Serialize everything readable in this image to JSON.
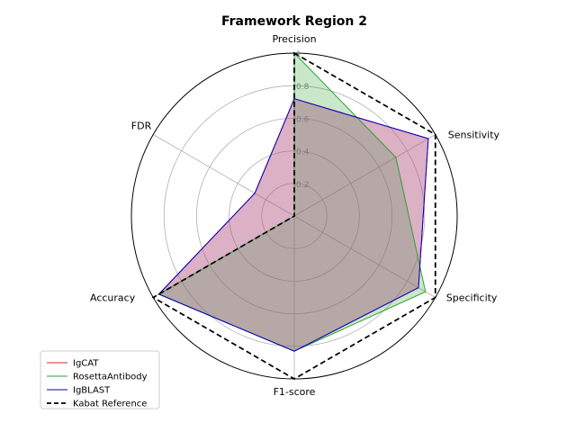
{
  "chart_data": {
    "type": "radar",
    "title": "Framework Region 2",
    "axes": [
      "Precision",
      "Sensitivity",
      "Specificity",
      "F1-score",
      "Accuracy",
      "FDR"
    ],
    "rlim": [
      0,
      1
    ],
    "rticks": [
      "0.2",
      "0.4",
      "0.6",
      "0.8",
      "1"
    ],
    "rtick_values": [
      0.2,
      0.4,
      0.6,
      0.8,
      1.0
    ],
    "grid": true,
    "legend_position": "lower-left",
    "series": [
      {
        "name": "IgCAT",
        "values": [
          0.72,
          0.95,
          0.88,
          0.83,
          0.96,
          0.28
        ],
        "color": "#d62728",
        "fill": "#d62728",
        "dash": false
      },
      {
        "name": "RosettaAntibody",
        "values": [
          1.0,
          0.72,
          0.93,
          0.83,
          0.96,
          0.0
        ],
        "color": "#2ca02c",
        "fill": "#2ca02c",
        "dash": false
      },
      {
        "name": "IgBLAST",
        "values": [
          0.72,
          0.95,
          0.88,
          0.83,
          0.96,
          0.28
        ],
        "color": "#0000cc",
        "fill": "#9467bd",
        "dash": false
      },
      {
        "name": "Kabat Reference",
        "values": [
          1.0,
          1.0,
          1.0,
          1.0,
          1.0,
          0.0
        ],
        "color": "#000000",
        "fill": "none",
        "dash": true
      }
    ]
  }
}
